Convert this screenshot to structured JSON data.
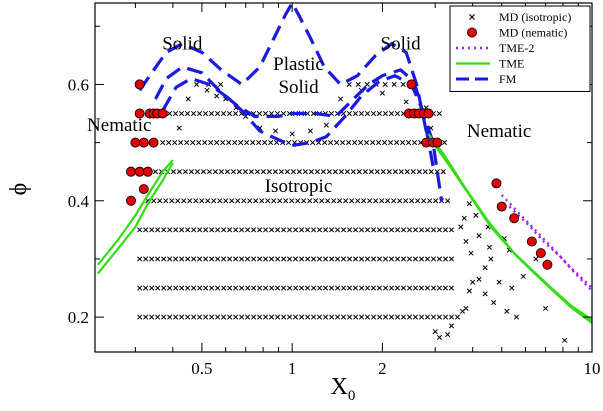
{
  "chart_data": {
    "type": "scatter",
    "xlabel": "X",
    "xlabel_sub": "0",
    "ylabel": "ϕ",
    "x_scale": "log",
    "xlim": [
      0.22,
      10
    ],
    "ylim": [
      0.14,
      0.74
    ],
    "x_ticks": [
      {
        "value": 0.5,
        "label": "0.5"
      },
      {
        "value": 1,
        "label": "1"
      },
      {
        "value": 2,
        "label": "2"
      },
      {
        "value": 10,
        "label": "10"
      }
    ],
    "x_minor_ticks": [
      0.3,
      0.4,
      0.6,
      0.7,
      0.8,
      0.9,
      3,
      4,
      5,
      6,
      7,
      8,
      9
    ],
    "y_ticks": [
      {
        "value": 0.2,
        "label": "0.2"
      },
      {
        "value": 0.4,
        "label": "0.4"
      },
      {
        "value": 0.6,
        "label": "0.6"
      }
    ],
    "y_minor_ticks": [
      0.3,
      0.5,
      0.7
    ],
    "grid": false,
    "legend_position": "top-right",
    "legend": [
      {
        "label": "MD (isotropic)",
        "kind": "cross",
        "color": "#000000"
      },
      {
        "label": "MD (nematic)",
        "kind": "circle",
        "color": "#e00000"
      },
      {
        "label": "TME-2",
        "kind": "dotted",
        "color": "#a020f0"
      },
      {
        "label": "TME",
        "kind": "solid",
        "color": "#33dd11"
      },
      {
        "label": "FM",
        "kind": "dashed",
        "color": "#1a1ae0"
      }
    ],
    "annotations": [
      {
        "text": "Solid",
        "x": 0.43,
        "y": 0.66
      },
      {
        "text": "Plastic",
        "x": 1.05,
        "y": 0.625
      },
      {
        "text": "Solid",
        "x": 1.05,
        "y": 0.585
      },
      {
        "text": "Solid",
        "x": 2.3,
        "y": 0.66
      },
      {
        "text": "Nematic",
        "x": 0.265,
        "y": 0.52
      },
      {
        "text": "Nematic",
        "x": 4.9,
        "y": 0.51
      },
      {
        "text": "Isotropic",
        "x": 1.05,
        "y": 0.415
      }
    ],
    "md_isotropic": {
      "name": "MD (isotropic)",
      "rows": [
        {
          "phi": 0.2,
          "x_from": 0.31,
          "x_to": 3.6,
          "step": 0.02
        },
        {
          "phi": 0.25,
          "x_from": 0.31,
          "x_to": 3.55,
          "step": 0.02
        },
        {
          "phi": 0.3,
          "x_from": 0.31,
          "x_to": 3.5,
          "step": 0.02
        },
        {
          "phi": 0.35,
          "x_from": 0.31,
          "x_to": 3.45,
          "step": 0.02
        },
        {
          "phi": 0.4,
          "x_from": 0.33,
          "x_to": 3.4,
          "step": 0.02
        },
        {
          "phi": 0.45,
          "x_from": 0.35,
          "x_to": 3.3,
          "step": 0.02
        },
        {
          "phi": 0.5,
          "x_from": 0.37,
          "x_to": 3.25,
          "step": 0.02
        },
        {
          "phi": 0.55,
          "x_from": 0.39,
          "x_to": 3.1,
          "step": 0.02
        },
        {
          "phi": 0.6,
          "x_from": 0.48,
          "x_to": 0.62,
          "step": 0.04
        },
        {
          "phi": 0.6,
          "x_from": 1.55,
          "x_to": 2.6,
          "step": 0.03
        }
      ],
      "extra_points": [
        [
          0.52,
          0.59
        ],
        [
          0.56,
          0.58
        ],
        [
          0.6,
          0.575
        ],
        [
          0.45,
          0.575
        ],
        [
          0.65,
          0.56
        ],
        [
          0.7,
          0.545
        ],
        [
          0.78,
          0.525
        ],
        [
          0.88,
          0.52
        ],
        [
          1.0,
          0.515
        ],
        [
          1.15,
          0.52
        ],
        [
          1.3,
          0.53
        ],
        [
          1.45,
          0.575
        ],
        [
          1.7,
          0.59
        ],
        [
          2.0,
          0.585
        ],
        [
          2.4,
          0.57
        ],
        [
          2.8,
          0.56
        ],
        [
          0.42,
          0.525
        ],
        [
          2.9,
          0.525
        ],
        [
          3.0,
          0.175
        ],
        [
          3.1,
          0.165
        ],
        [
          3.3,
          0.17
        ],
        [
          3.4,
          0.185
        ],
        [
          3.7,
          0.21
        ],
        [
          3.8,
          0.215
        ],
        [
          3.9,
          0.245
        ],
        [
          4.0,
          0.26
        ],
        [
          4.2,
          0.265
        ],
        [
          4.4,
          0.285
        ],
        [
          4.6,
          0.3
        ],
        [
          4.4,
          0.24
        ],
        [
          4.7,
          0.225
        ],
        [
          5.2,
          0.21
        ],
        [
          5.6,
          0.2
        ],
        [
          4.9,
          0.26
        ],
        [
          5.4,
          0.25
        ],
        [
          5.9,
          0.27
        ],
        [
          6.5,
          0.3
        ],
        [
          7.0,
          0.215
        ],
        [
          8.1,
          0.16
        ],
        [
          4.5,
          0.355
        ],
        [
          4.55,
          0.32
        ],
        [
          4.1,
          0.375
        ],
        [
          3.9,
          0.395
        ],
        [
          3.75,
          0.37
        ],
        [
          3.65,
          0.355
        ],
        [
          3.8,
          0.33
        ],
        [
          3.95,
          0.31
        ],
        [
          4.2,
          0.34
        ],
        [
          5.1,
          0.335
        ],
        [
          5.3,
          0.315
        ]
      ]
    },
    "md_nematic": {
      "name": "MD (nematic)",
      "points": [
        [
          0.31,
          0.55
        ],
        [
          0.3,
          0.5
        ],
        [
          0.29,
          0.45
        ],
        [
          0.29,
          0.4
        ],
        [
          0.335,
          0.55
        ],
        [
          0.345,
          0.55
        ],
        [
          0.355,
          0.55
        ],
        [
          0.37,
          0.55
        ],
        [
          0.32,
          0.5
        ],
        [
          0.345,
          0.5
        ],
        [
          0.31,
          0.45
        ],
        [
          0.33,
          0.45
        ],
        [
          0.32,
          0.42
        ],
        [
          0.31,
          0.6
        ],
        [
          2.5,
          0.6
        ],
        [
          2.45,
          0.55
        ],
        [
          2.55,
          0.55
        ],
        [
          2.65,
          0.55
        ],
        [
          2.75,
          0.55
        ],
        [
          2.85,
          0.55
        ],
        [
          2.8,
          0.5
        ],
        [
          2.95,
          0.5
        ],
        [
          3.05,
          0.5
        ],
        [
          4.8,
          0.43
        ],
        [
          5.0,
          0.39
        ],
        [
          5.5,
          0.37
        ],
        [
          6.3,
          0.33
        ],
        [
          6.75,
          0.31
        ],
        [
          7.1,
          0.29
        ]
      ]
    },
    "fm_curves": [
      {
        "name": "FM",
        "points": [
          [
            0.31,
            0.59
          ],
          [
            0.34,
            0.62
          ],
          [
            0.38,
            0.655
          ],
          [
            0.43,
            0.67
          ],
          [
            0.5,
            0.655
          ],
          [
            0.58,
            0.625
          ],
          [
            0.68,
            0.6
          ],
          [
            0.78,
            0.63
          ],
          [
            0.88,
            0.685
          ],
          [
            0.95,
            0.72
          ],
          [
            1.0,
            0.74
          ],
          [
            1.05,
            0.72
          ],
          [
            1.15,
            0.68
          ],
          [
            1.28,
            0.63
          ],
          [
            1.45,
            0.6
          ],
          [
            1.65,
            0.615
          ],
          [
            1.9,
            0.65
          ],
          [
            2.15,
            0.67
          ],
          [
            2.4,
            0.655
          ],
          [
            2.6,
            0.6
          ],
          [
            2.8,
            0.52
          ]
        ]
      },
      {
        "name": "FM",
        "points": [
          [
            0.35,
            0.575
          ],
          [
            0.38,
            0.61
          ],
          [
            0.43,
            0.63
          ],
          [
            0.5,
            0.62
          ],
          [
            0.57,
            0.59
          ],
          [
            0.65,
            0.565
          ],
          [
            0.75,
            0.545
          ],
          [
            0.9,
            0.545
          ],
          [
            1.0,
            0.55
          ],
          [
            1.2,
            0.55
          ],
          [
            1.4,
            0.545
          ],
          [
            1.6,
            0.575
          ],
          [
            1.8,
            0.6
          ],
          [
            2.0,
            0.615
          ],
          [
            2.3,
            0.625
          ],
          [
            2.55,
            0.605
          ],
          [
            2.75,
            0.545
          ],
          [
            2.95,
            0.46
          ]
        ]
      },
      {
        "name": "FM",
        "points": [
          [
            0.37,
            0.555
          ],
          [
            0.41,
            0.595
          ],
          [
            0.46,
            0.61
          ],
          [
            0.53,
            0.6
          ],
          [
            0.6,
            0.58
          ],
          [
            0.68,
            0.555
          ],
          [
            0.78,
            0.52
          ],
          [
            0.9,
            0.505
          ],
          [
            1.0,
            0.495
          ],
          [
            1.15,
            0.5
          ],
          [
            1.3,
            0.51
          ],
          [
            1.5,
            0.545
          ],
          [
            1.7,
            0.58
          ],
          [
            1.95,
            0.605
          ],
          [
            2.2,
            0.615
          ],
          [
            2.5,
            0.6
          ],
          [
            2.7,
            0.56
          ],
          [
            2.95,
            0.5
          ],
          [
            3.15,
            0.4
          ]
        ]
      }
    ],
    "tme_curves": [
      {
        "name": "TME",
        "points": [
          [
            0.225,
            0.275
          ],
          [
            0.26,
            0.315
          ],
          [
            0.3,
            0.355
          ],
          [
            0.33,
            0.395
          ],
          [
            0.37,
            0.435
          ],
          [
            0.4,
            0.465
          ]
        ]
      },
      {
        "name": "TME",
        "points": [
          [
            0.225,
            0.29
          ],
          [
            0.26,
            0.33
          ],
          [
            0.3,
            0.375
          ],
          [
            0.33,
            0.41
          ],
          [
            0.37,
            0.45
          ],
          [
            0.4,
            0.47
          ]
        ]
      },
      {
        "name": "TME",
        "points": [
          [
            2.85,
            0.515
          ],
          [
            3.2,
            0.48
          ],
          [
            3.8,
            0.42
          ],
          [
            4.5,
            0.365
          ],
          [
            5.5,
            0.31
          ],
          [
            6.5,
            0.275
          ],
          [
            7.5,
            0.245
          ],
          [
            8.5,
            0.22
          ],
          [
            10,
            0.195
          ]
        ]
      },
      {
        "name": "TME",
        "points": [
          [
            2.95,
            0.5
          ],
          [
            3.3,
            0.465
          ],
          [
            3.9,
            0.41
          ],
          [
            4.6,
            0.355
          ],
          [
            5.6,
            0.305
          ],
          [
            6.6,
            0.27
          ],
          [
            7.6,
            0.24
          ],
          [
            8.6,
            0.215
          ],
          [
            10,
            0.19
          ]
        ]
      }
    ],
    "tme2_curves": [
      {
        "name": "TME-2",
        "points": [
          [
            5.0,
            0.41
          ],
          [
            5.8,
            0.375
          ],
          [
            6.6,
            0.345
          ],
          [
            7.5,
            0.315
          ],
          [
            8.5,
            0.285
          ],
          [
            10,
            0.25
          ]
        ]
      },
      {
        "name": "TME-2",
        "points": [
          [
            5.3,
            0.39
          ],
          [
            6.1,
            0.36
          ],
          [
            6.9,
            0.33
          ],
          [
            7.8,
            0.305
          ],
          [
            8.8,
            0.275
          ],
          [
            10,
            0.245
          ]
        ]
      }
    ]
  }
}
